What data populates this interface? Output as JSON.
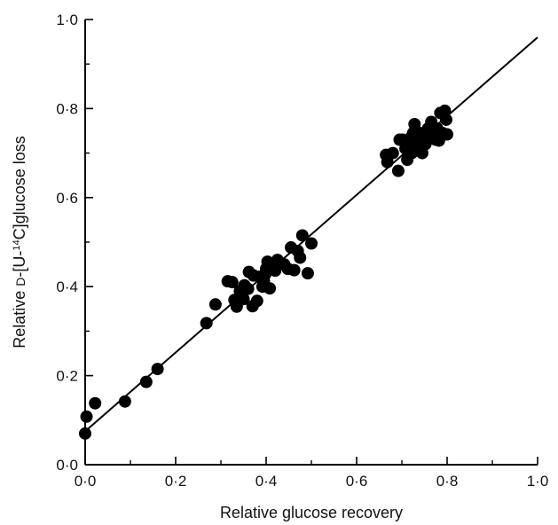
{
  "chart_data": {
    "type": "scatter",
    "title": "",
    "xlabel": "Relative glucose recovery",
    "ylabel_parts": {
      "prefix": "Relative ",
      "small_caps_d": "D",
      "middle": "-[U-",
      "superscript": "14",
      "suffix": "C]glucose loss"
    },
    "xlim": [
      0,
      1
    ],
    "ylim": [
      0,
      1
    ],
    "xticks": [
      {
        "value": 0.0,
        "label": "0·0"
      },
      {
        "value": 0.2,
        "label": "0·2"
      },
      {
        "value": 0.4,
        "label": "0·4"
      },
      {
        "value": 0.6,
        "label": "0·6"
      },
      {
        "value": 0.8,
        "label": "0·8"
      },
      {
        "value": 1.0,
        "label": "1·0"
      }
    ],
    "yticks": [
      {
        "value": 0.0,
        "label": "0·0"
      },
      {
        "value": 0.2,
        "label": "0·2"
      },
      {
        "value": 0.4,
        "label": "0·4"
      },
      {
        "value": 0.6,
        "label": "0·6"
      },
      {
        "value": 0.8,
        "label": "0·8"
      },
      {
        "value": 1.0,
        "label": "1·0"
      }
    ],
    "grid": false,
    "marker_color": "#000000",
    "line_color": "#000000",
    "regression_line": {
      "x": [
        0.0,
        1.0
      ],
      "y": [
        0.075,
        0.96
      ]
    },
    "points": [
      [
        0.0,
        0.07
      ],
      [
        0.003,
        0.108
      ],
      [
        0.022,
        0.138
      ],
      [
        0.088,
        0.142
      ],
      [
        0.135,
        0.186
      ],
      [
        0.16,
        0.215
      ],
      [
        0.268,
        0.318
      ],
      [
        0.288,
        0.36
      ],
      [
        0.315,
        0.412
      ],
      [
        0.325,
        0.41
      ],
      [
        0.33,
        0.37
      ],
      [
        0.335,
        0.355
      ],
      [
        0.342,
        0.39
      ],
      [
        0.35,
        0.372
      ],
      [
        0.352,
        0.403
      ],
      [
        0.36,
        0.395
      ],
      [
        0.362,
        0.433
      ],
      [
        0.37,
        0.356
      ],
      [
        0.372,
        0.425
      ],
      [
        0.38,
        0.368
      ],
      [
        0.385,
        0.422
      ],
      [
        0.392,
        0.4
      ],
      [
        0.395,
        0.413
      ],
      [
        0.398,
        0.428
      ],
      [
        0.4,
        0.44
      ],
      [
        0.403,
        0.456
      ],
      [
        0.408,
        0.396
      ],
      [
        0.415,
        0.445
      ],
      [
        0.42,
        0.436
      ],
      [
        0.425,
        0.46
      ],
      [
        0.432,
        0.45
      ],
      [
        0.44,
        0.45
      ],
      [
        0.448,
        0.44
      ],
      [
        0.455,
        0.488
      ],
      [
        0.462,
        0.437
      ],
      [
        0.47,
        0.48
      ],
      [
        0.475,
        0.465
      ],
      [
        0.48,
        0.515
      ],
      [
        0.492,
        0.43
      ],
      [
        0.5,
        0.497
      ],
      [
        0.665,
        0.696
      ],
      [
        0.668,
        0.68
      ],
      [
        0.68,
        0.7
      ],
      [
        0.692,
        0.66
      ],
      [
        0.695,
        0.73
      ],
      [
        0.702,
        0.73
      ],
      [
        0.708,
        0.71
      ],
      [
        0.712,
        0.685
      ],
      [
        0.715,
        0.72
      ],
      [
        0.72,
        0.735
      ],
      [
        0.722,
        0.7
      ],
      [
        0.725,
        0.745
      ],
      [
        0.728,
        0.765
      ],
      [
        0.73,
        0.72
      ],
      [
        0.735,
        0.735
      ],
      [
        0.738,
        0.71
      ],
      [
        0.74,
        0.745
      ],
      [
        0.745,
        0.7
      ],
      [
        0.748,
        0.728
      ],
      [
        0.752,
        0.72
      ],
      [
        0.755,
        0.74
      ],
      [
        0.758,
        0.755
      ],
      [
        0.762,
        0.735
      ],
      [
        0.765,
        0.77
      ],
      [
        0.768,
        0.76
      ],
      [
        0.772,
        0.745
      ],
      [
        0.775,
        0.73
      ],
      [
        0.778,
        0.755
      ],
      [
        0.782,
        0.728
      ],
      [
        0.785,
        0.79
      ],
      [
        0.79,
        0.745
      ],
      [
        0.795,
        0.795
      ],
      [
        0.798,
        0.775
      ],
      [
        0.8,
        0.742
      ]
    ]
  }
}
